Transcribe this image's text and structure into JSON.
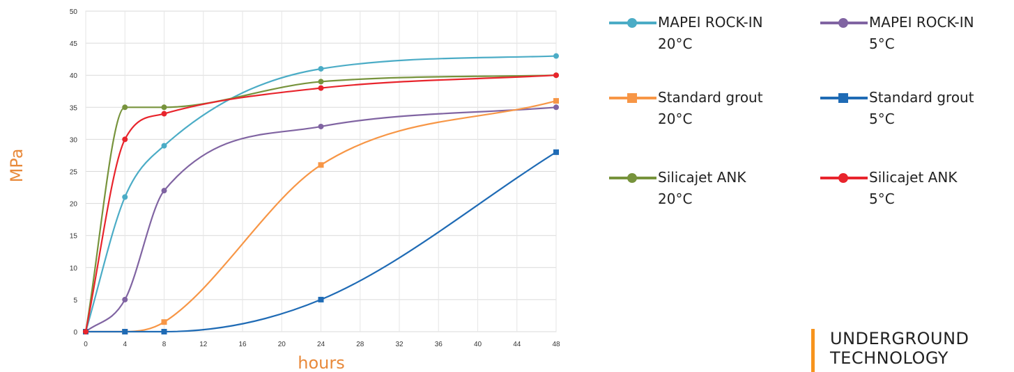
{
  "chart_data": {
    "type": "line",
    "xlabel": "hours",
    "ylabel": "MPa",
    "xlim": [
      0,
      48
    ],
    "ylim": [
      0,
      50
    ],
    "xticks": [
      0,
      4,
      8,
      12,
      16,
      20,
      24,
      28,
      32,
      36,
      40,
      44,
      48
    ],
    "yticks": [
      0,
      5,
      10,
      15,
      20,
      25,
      30,
      35,
      40,
      45,
      50
    ],
    "grid": true,
    "legend_position": "right",
    "series": [
      {
        "name": "MAPEI ROCK-IN\n20°C",
        "color": "#4bacc6",
        "marker": "circle",
        "x": [
          0,
          4,
          8,
          24,
          48
        ],
        "y": [
          0,
          21,
          29,
          41,
          43
        ]
      },
      {
        "name": "MAPEI ROCK-IN\n5°C",
        "color": "#8064a2",
        "marker": "circle",
        "x": [
          0,
          4,
          8,
          24,
          48
        ],
        "y": [
          0,
          5,
          22,
          32,
          35
        ]
      },
      {
        "name": "Standard grout\n20°C",
        "color": "#f79646",
        "marker": "square",
        "x": [
          0,
          4,
          8,
          24,
          48
        ],
        "y": [
          0,
          0,
          1.5,
          26,
          36
        ]
      },
      {
        "name": "Standard grout\n5°C",
        "color": "#1f6bb5",
        "marker": "square",
        "x": [
          0,
          4,
          8,
          24,
          48
        ],
        "y": [
          0,
          0,
          0,
          5,
          28
        ]
      },
      {
        "name": "Silicajet ANK\n20°C",
        "color": "#77933c",
        "marker": "circle",
        "x": [
          0,
          4,
          8,
          24,
          48
        ],
        "y": [
          0,
          35,
          35,
          39,
          40
        ]
      },
      {
        "name": "Silicajet ANK\n5°C",
        "color": "#e8242c",
        "marker": "circle",
        "x": [
          0,
          4,
          8,
          24,
          48
        ],
        "y": [
          0,
          30,
          34,
          38,
          40
        ]
      }
    ]
  },
  "branding": {
    "line1": "UNDERGROUND",
    "line2": "TECHNOLOGY",
    "accent": "#f7941d"
  }
}
